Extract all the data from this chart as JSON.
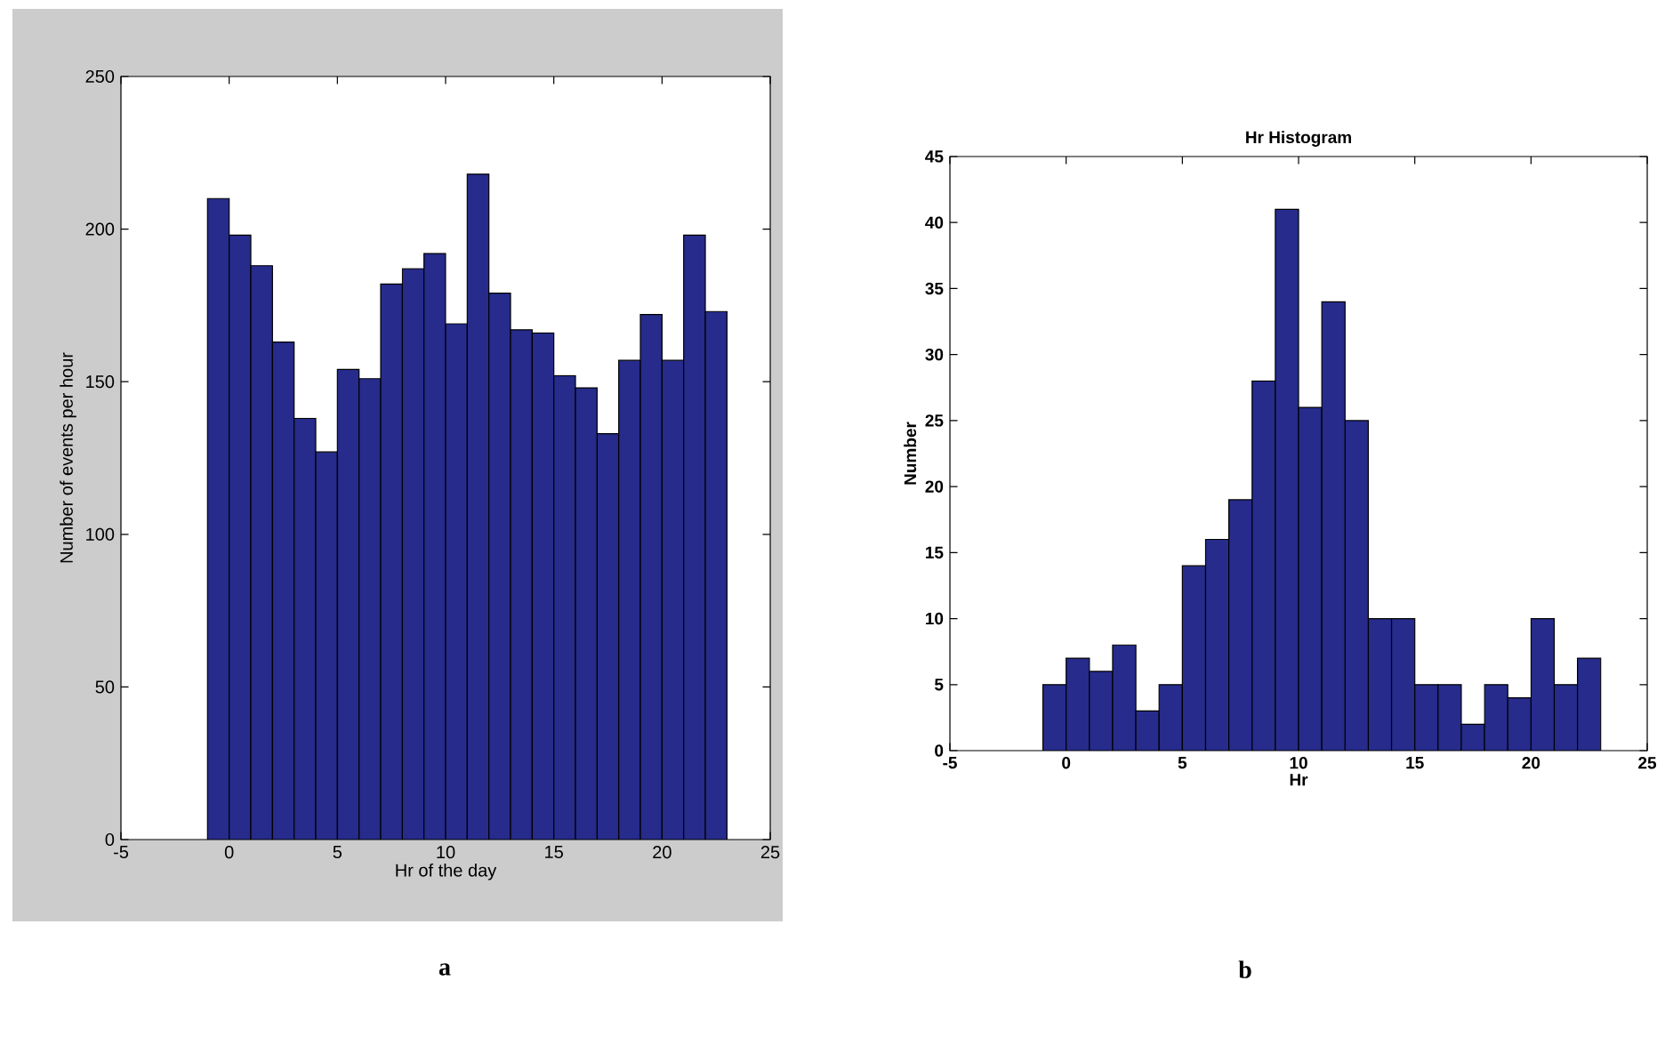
{
  "chart_data": [
    {
      "type": "histogram",
      "xlabel": "Hr of the day",
      "ylabel": "Number of events per hour",
      "color": "#262b8c",
      "bins": [
        -1,
        0,
        1,
        2,
        3,
        4,
        5,
        6,
        7,
        8,
        9,
        10,
        11,
        12,
        13,
        14,
        15,
        16,
        17,
        18,
        19,
        20,
        21,
        22,
        23
      ],
      "values": [
        210,
        198,
        188,
        163,
        138,
        127,
        154,
        151,
        182,
        187,
        192,
        169,
        218,
        179,
        167,
        166,
        152,
        148,
        133,
        157,
        172,
        157,
        198,
        173
      ],
      "xlim": [
        -5,
        25
      ],
      "ylim": [
        0,
        250
      ],
      "xticks": [
        -5,
        0,
        5,
        10,
        15,
        20,
        25
      ],
      "yticks": [
        0,
        50,
        100,
        150,
        200,
        250
      ],
      "annotations": [
        "a"
      ]
    },
    {
      "type": "histogram",
      "title": "Hr Histogram",
      "xlabel": "Hr",
      "ylabel": "Number",
      "color": "#262b8c",
      "bins": [
        -1,
        0,
        1,
        2,
        3,
        4,
        5,
        6,
        7,
        8,
        9,
        10,
        11,
        12,
        13,
        14,
        15,
        16,
        17,
        18,
        19,
        20,
        21,
        22,
        23
      ],
      "values": [
        5,
        7,
        6,
        8,
        3,
        5,
        14,
        16,
        19,
        28,
        41,
        26,
        34,
        25,
        10,
        10,
        5,
        5,
        2,
        5,
        4,
        10,
        5,
        7
      ],
      "xlim": [
        -5,
        25
      ],
      "ylim": [
        0,
        45
      ],
      "xticks": [
        -5,
        0,
        5,
        10,
        15,
        20,
        25
      ],
      "yticks": [
        0,
        5,
        10,
        15,
        20,
        25,
        30,
        35,
        40,
        45
      ],
      "annotations": [
        "b"
      ]
    }
  ]
}
